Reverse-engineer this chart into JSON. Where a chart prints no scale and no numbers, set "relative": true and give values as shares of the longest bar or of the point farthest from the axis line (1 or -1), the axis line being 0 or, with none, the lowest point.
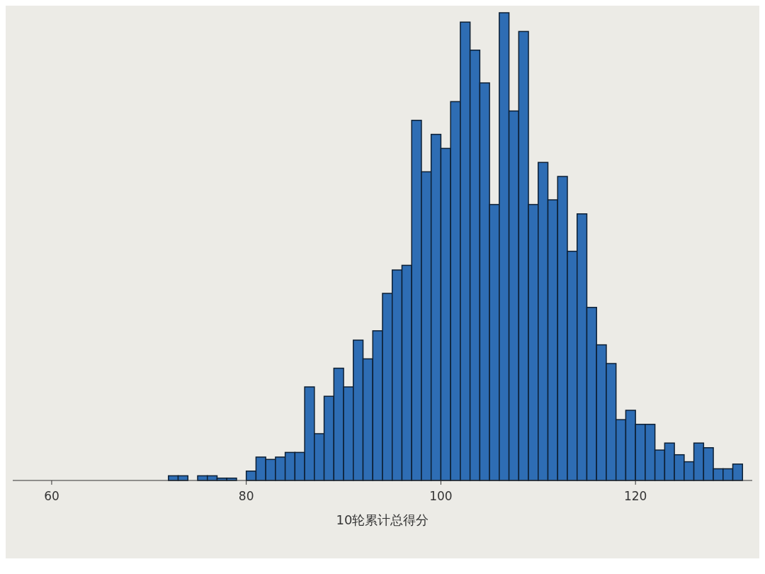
{
  "chart_data": {
    "type": "bar",
    "xlabel": "10轮累计总得分",
    "relative": true,
    "color": "#2e6db4",
    "x": [
      72.5,
      73.5,
      74.5,
      75.5,
      76.5,
      77.5,
      78.5,
      79.5,
      80.5,
      81.5,
      82.5,
      83.5,
      84.5,
      85.5,
      86.5,
      87.5,
      88.5,
      89.5,
      90.5,
      91.5,
      92.5,
      93.5,
      94.5,
      95.5,
      96.5,
      97.5,
      98.5,
      99.5,
      100.5,
      101.5,
      102.5,
      103.5,
      104.5,
      105.5,
      106.5,
      107.5,
      108.5,
      109.5,
      110.5,
      111.5,
      112.5,
      113.5,
      114.5,
      115.5,
      116.5,
      117.5,
      118.5,
      119.5,
      120.5,
      121.5,
      122.5,
      123.5,
      124.5,
      125.5,
      126.5,
      127.5,
      128.5,
      129.5,
      130.5
    ],
    "values": [
      0.01,
      0.01,
      0,
      0.01,
      0.01,
      0.005,
      0.005,
      0,
      0.02,
      0.05,
      0.045,
      0.05,
      0.06,
      0.06,
      0.2,
      0.1,
      0.18,
      0.24,
      0.2,
      0.3,
      0.26,
      0.32,
      0.4,
      0.45,
      0.46,
      0.77,
      0.66,
      0.74,
      0.71,
      0.81,
      0.98,
      0.92,
      0.85,
      0.59,
      1,
      0.79,
      0.96,
      0.59,
      0.68,
      0.6,
      0.65,
      0.49,
      0.57,
      0.37,
      0.29,
      0.25,
      0.13,
      0.15,
      0.12,
      0.12,
      0.065,
      0.08,
      0.055,
      0.04,
      0.08,
      0.07,
      0.025,
      0.025,
      0.035
    ],
    "xlim": [
      56,
      132
    ],
    "xticks": [
      60,
      80,
      100,
      120
    ]
  }
}
